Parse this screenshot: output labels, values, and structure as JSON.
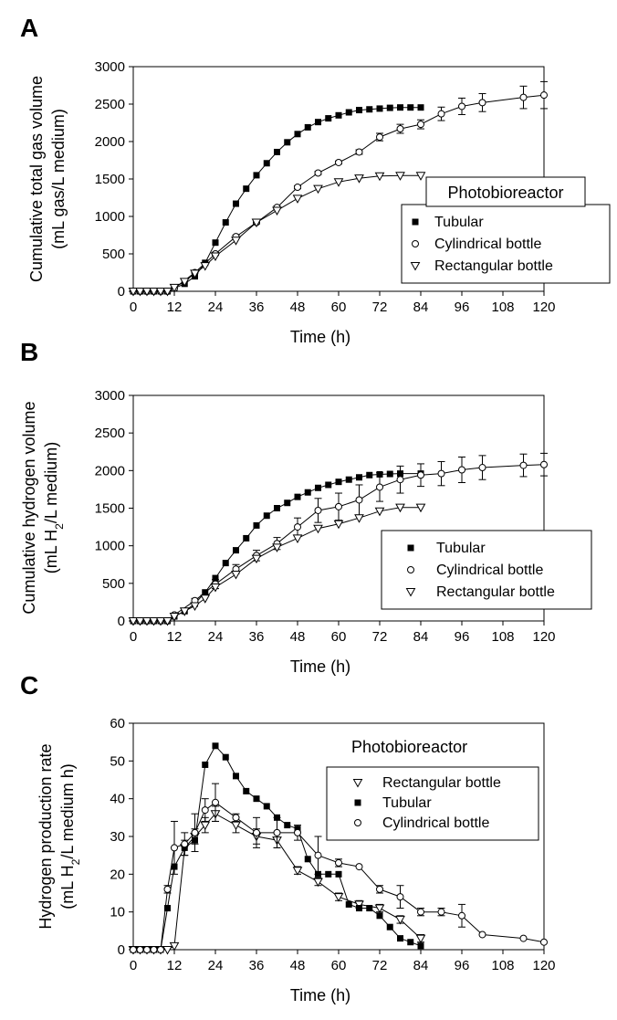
{
  "chart_data": [
    {
      "panel": "A",
      "type": "line",
      "xlabel": "Time (h)",
      "ylabel_lines": [
        "Cumulative  total gas volume",
        "(mL gas/L medium)"
      ],
      "xlim": [
        0,
        120
      ],
      "ylim": [
        0,
        3000
      ],
      "xticks": [
        0,
        12,
        24,
        36,
        48,
        60,
        72,
        84,
        96,
        108,
        120
      ],
      "yticks": [
        0,
        500,
        1000,
        1500,
        2000,
        2500,
        3000
      ],
      "grid": false,
      "legend": {
        "title": "Photobioreactor",
        "title_boxed": true,
        "placement": "right",
        "entries": [
          "Tubular",
          "Cylindrical bottle",
          "Rectangular bottle"
        ]
      },
      "series": [
        {
          "name": "Tubular",
          "marker": "square-filled",
          "x": [
            0,
            2,
            4,
            6,
            8,
            10,
            12,
            15,
            18,
            21,
            24,
            27,
            30,
            33,
            36,
            39,
            42,
            45,
            48,
            51,
            54,
            57,
            60,
            63,
            66,
            69,
            72,
            75,
            78,
            81,
            84
          ],
          "y": [
            0,
            0,
            0,
            0,
            0,
            0,
            40,
            100,
            200,
            380,
            650,
            920,
            1170,
            1370,
            1550,
            1710,
            1860,
            1990,
            2100,
            2190,
            2260,
            2310,
            2350,
            2390,
            2420,
            2430,
            2440,
            2450,
            2455,
            2455,
            2455
          ],
          "err": []
        },
        {
          "name": "Cylindrical bottle",
          "marker": "circle-open",
          "x": [
            0,
            2,
            4,
            6,
            8,
            10,
            12,
            18,
            24,
            30,
            36,
            42,
            48,
            54,
            60,
            66,
            72,
            78,
            84,
            90,
            96,
            102,
            114,
            120
          ],
          "y": [
            0,
            0,
            0,
            0,
            0,
            0,
            40,
            250,
            500,
            730,
            920,
            1120,
            1390,
            1580,
            1720,
            1860,
            2060,
            2170,
            2230,
            2370,
            2470,
            2520,
            2590,
            2620
          ],
          "err": [
            0,
            0,
            0,
            0,
            0,
            0,
            0,
            0,
            20,
            20,
            20,
            20,
            20,
            20,
            20,
            30,
            50,
            60,
            60,
            90,
            110,
            120,
            150,
            180
          ]
        },
        {
          "name": "Rectangular bottle",
          "marker": "triangle-down-open",
          "x": [
            0,
            2,
            4,
            6,
            8,
            10,
            12,
            15,
            18,
            21,
            24,
            30,
            36,
            42,
            48,
            54,
            60,
            66,
            72,
            78,
            84
          ],
          "y": [
            0,
            0,
            0,
            0,
            0,
            0,
            50,
            130,
            240,
            340,
            470,
            680,
            920,
            1080,
            1240,
            1370,
            1460,
            1510,
            1540,
            1545,
            1545
          ],
          "err": []
        }
      ]
    },
    {
      "panel": "B",
      "type": "line",
      "xlabel": "Time (h)",
      "ylabel_lines": [
        "Cumulative  hydrogen volume",
        "(mL H2/L medium)"
      ],
      "xlim": [
        0,
        120
      ],
      "ylim": [
        0,
        3000
      ],
      "xticks": [
        0,
        12,
        24,
        36,
        48,
        60,
        72,
        84,
        96,
        108,
        120
      ],
      "yticks": [
        0,
        500,
        1000,
        1500,
        2000,
        2500,
        3000
      ],
      "grid": false,
      "legend": {
        "title": "",
        "placement": "lower-right",
        "entries": [
          "Tubular",
          "Cylindrical bottle",
          "Rectangular bottle"
        ]
      },
      "series": [
        {
          "name": "Tubular",
          "marker": "square-filled",
          "x": [
            0,
            2,
            4,
            6,
            8,
            10,
            12,
            15,
            18,
            21,
            24,
            27,
            30,
            33,
            36,
            39,
            42,
            45,
            48,
            51,
            54,
            57,
            60,
            63,
            66,
            69,
            72,
            75,
            78,
            84
          ],
          "y": [
            0,
            0,
            0,
            0,
            0,
            0,
            60,
            130,
            230,
            380,
            570,
            770,
            940,
            1100,
            1270,
            1400,
            1500,
            1570,
            1650,
            1710,
            1770,
            1810,
            1850,
            1880,
            1910,
            1940,
            1950,
            1955,
            1960,
            1960
          ],
          "err": []
        },
        {
          "name": "Cylindrical bottle",
          "marker": "circle-open",
          "x": [
            0,
            2,
            4,
            6,
            8,
            10,
            12,
            18,
            24,
            30,
            36,
            42,
            48,
            54,
            60,
            66,
            72,
            78,
            84,
            90,
            96,
            102,
            114,
            120
          ],
          "y": [
            0,
            0,
            0,
            0,
            0,
            0,
            80,
            270,
            490,
            690,
            870,
            1030,
            1250,
            1470,
            1520,
            1610,
            1780,
            1880,
            1940,
            1960,
            2010,
            2040,
            2070,
            2080
          ],
          "err": [
            0,
            0,
            0,
            0,
            0,
            0,
            0,
            30,
            60,
            60,
            70,
            80,
            120,
            160,
            180,
            200,
            190,
            180,
            150,
            160,
            170,
            160,
            150,
            150
          ]
        },
        {
          "name": "Rectangular bottle",
          "marker": "triangle-down-open",
          "x": [
            0,
            2,
            4,
            6,
            8,
            10,
            12,
            15,
            18,
            21,
            24,
            30,
            36,
            42,
            48,
            54,
            60,
            66,
            72,
            78,
            84
          ],
          "y": [
            0,
            0,
            0,
            0,
            0,
            0,
            60,
            130,
            200,
            300,
            450,
            620,
            830,
            980,
            1100,
            1230,
            1290,
            1370,
            1460,
            1510,
            1510
          ],
          "err": []
        }
      ]
    },
    {
      "panel": "C",
      "type": "line",
      "xlabel": "Time (h)",
      "ylabel_lines": [
        "Hydrogen production rate",
        "(mL H2/L medium h)"
      ],
      "xlim": [
        0,
        120
      ],
      "ylim": [
        0,
        60
      ],
      "xticks": [
        0,
        12,
        24,
        36,
        48,
        60,
        72,
        84,
        96,
        108,
        120
      ],
      "yticks": [
        0,
        10,
        20,
        30,
        40,
        50,
        60
      ],
      "grid": false,
      "legend": {
        "title": "Photobioreactor",
        "title_boxed": false,
        "placement": "upper-right",
        "entries": [
          "Rectangular bottle",
          "Tubular",
          "Cylindrical bottle"
        ]
      },
      "series": [
        {
          "name": "Rectangular bottle",
          "marker": "triangle-down-open",
          "x": [
            0,
            2,
            4,
            6,
            8,
            10,
            12,
            15,
            18,
            21,
            24,
            30,
            36,
            42,
            48,
            54,
            60,
            66,
            72,
            78,
            84
          ],
          "y": [
            0,
            0,
            0,
            0,
            0,
            0,
            1,
            27,
            30,
            33,
            36,
            33,
            30,
            29,
            21,
            18,
            14,
            12,
            11,
            8,
            3
          ],
          "err": [
            0,
            0,
            0,
            0,
            0,
            0,
            0,
            2,
            2,
            2,
            2,
            2,
            2,
            2,
            1,
            1,
            1,
            1,
            1,
            1,
            1
          ]
        },
        {
          "name": "Tubular",
          "marker": "square-filled",
          "x": [
            0,
            2,
            4,
            6,
            8,
            10,
            12,
            15,
            18,
            21,
            24,
            27,
            30,
            33,
            36,
            39,
            42,
            45,
            48,
            51,
            54,
            57,
            60,
            63,
            66,
            69,
            72,
            75,
            78,
            81,
            84
          ],
          "y": [
            0,
            0,
            0,
            0,
            0,
            11,
            22,
            27,
            29,
            49,
            54,
            51,
            46,
            42,
            40,
            38,
            35,
            33,
            32,
            24,
            20,
            20,
            20,
            12,
            11,
            11,
            9,
            6,
            3,
            2,
            1
          ],
          "err": []
        },
        {
          "name": "Cylindrical bottle",
          "marker": "circle-open",
          "x": [
            0,
            2,
            4,
            6,
            8,
            10,
            12,
            15,
            18,
            21,
            24,
            30,
            36,
            42,
            48,
            54,
            60,
            66,
            72,
            78,
            84,
            90,
            96,
            102,
            114,
            120
          ],
          "y": [
            0,
            0,
            0,
            0,
            0,
            16,
            27,
            28,
            31,
            37,
            39,
            35,
            31,
            31,
            31,
            25,
            23,
            22,
            16,
            14,
            10,
            10,
            9,
            4,
            3,
            2
          ],
          "err": [
            0,
            0,
            0,
            0,
            0,
            1,
            7,
            3,
            5,
            3,
            5,
            1,
            4,
            4,
            2,
            5,
            1,
            0,
            1,
            3,
            1,
            1,
            3,
            0,
            0,
            0
          ]
        }
      ]
    }
  ],
  "panels": {
    "A": {
      "letter": "A"
    },
    "B": {
      "letter": "B"
    },
    "C": {
      "letter": "C"
    }
  }
}
